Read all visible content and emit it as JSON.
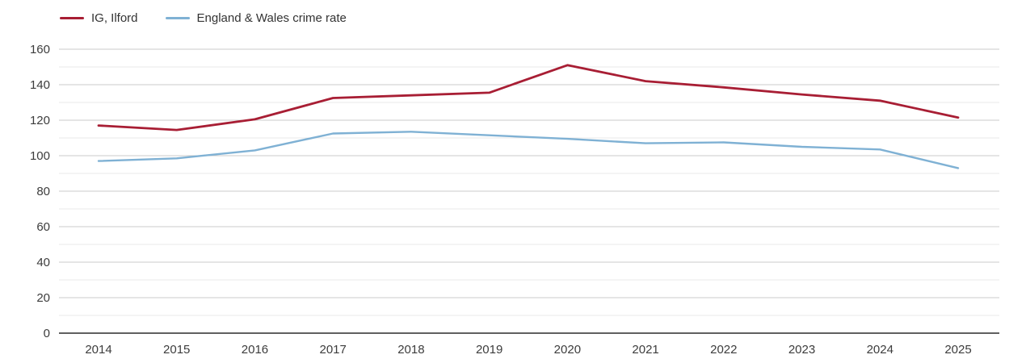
{
  "legend": {
    "items": [
      {
        "label": "IG, Ilford"
      },
      {
        "label": "England & Wales crime rate"
      }
    ]
  },
  "colors": {
    "series_red": "#a81e34",
    "series_blue": "#7fb1d4",
    "grid_major": "#cbcbcb",
    "grid_minor": "#e8e8e8",
    "axis_baseline": "#2b2b2b",
    "tick_text": "#3c3c3c"
  },
  "chart_data": {
    "type": "line",
    "title": "",
    "xlabel": "",
    "ylabel": "",
    "x": [
      2014,
      2015,
      2016,
      2017,
      2018,
      2019,
      2020,
      2021,
      2022,
      2023,
      2024,
      2025
    ],
    "series": [
      {
        "name": "IG, Ilford",
        "color": "#a81e34",
        "values": [
          117,
          114.5,
          120.5,
          132.5,
          134,
          135.5,
          151,
          142,
          138.5,
          134.5,
          131,
          121.5
        ]
      },
      {
        "name": "England & Wales crime rate",
        "color": "#7fb1d4",
        "values": [
          97,
          98.5,
          103,
          112.5,
          113.5,
          111.5,
          109.5,
          107,
          107.5,
          105,
          103.5,
          93
        ]
      }
    ],
    "ylim": [
      0,
      160
    ],
    "y_major_step": 20,
    "y_minor_step": 10,
    "grid": true,
    "legend_position": "top-left"
  }
}
